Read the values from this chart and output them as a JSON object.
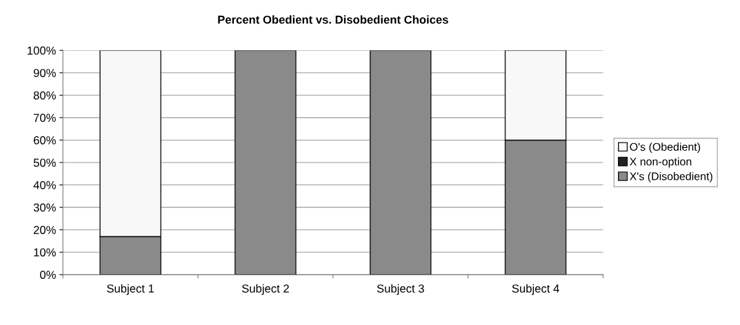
{
  "chart_data": {
    "type": "bar",
    "title": "Percent Obedient vs. Disobedient Choices",
    "stacked": true,
    "categories": [
      "Subject 1",
      "Subject 2",
      "Subject 3",
      "Subject 4"
    ],
    "series": [
      {
        "name": "X's (Disobedient)",
        "color": "#8a8a8a",
        "values": [
          17,
          100,
          100,
          60
        ]
      },
      {
        "name": "X non-option",
        "color": "#222222",
        "values": [
          0,
          0,
          0,
          0
        ]
      },
      {
        "name": "O's (Obedient)",
        "color": "#f8f8f8",
        "values": [
          83,
          0,
          0,
          40
        ]
      }
    ],
    "ylim": [
      0,
      100
    ],
    "yticks": [
      {
        "value": 0,
        "label": "0%"
      },
      {
        "value": 10,
        "label": "10%"
      },
      {
        "value": 20,
        "label": "20%"
      },
      {
        "value": 30,
        "label": "30%"
      },
      {
        "value": 40,
        "label": "40%"
      },
      {
        "value": 50,
        "label": "50%"
      },
      {
        "value": 60,
        "label": "60%"
      },
      {
        "value": 70,
        "label": "70%"
      },
      {
        "value": 80,
        "label": "80%"
      },
      {
        "value": 90,
        "label": "90%"
      },
      {
        "value": 100,
        "label": "100%"
      }
    ],
    "grid": "y",
    "legend": "right"
  }
}
